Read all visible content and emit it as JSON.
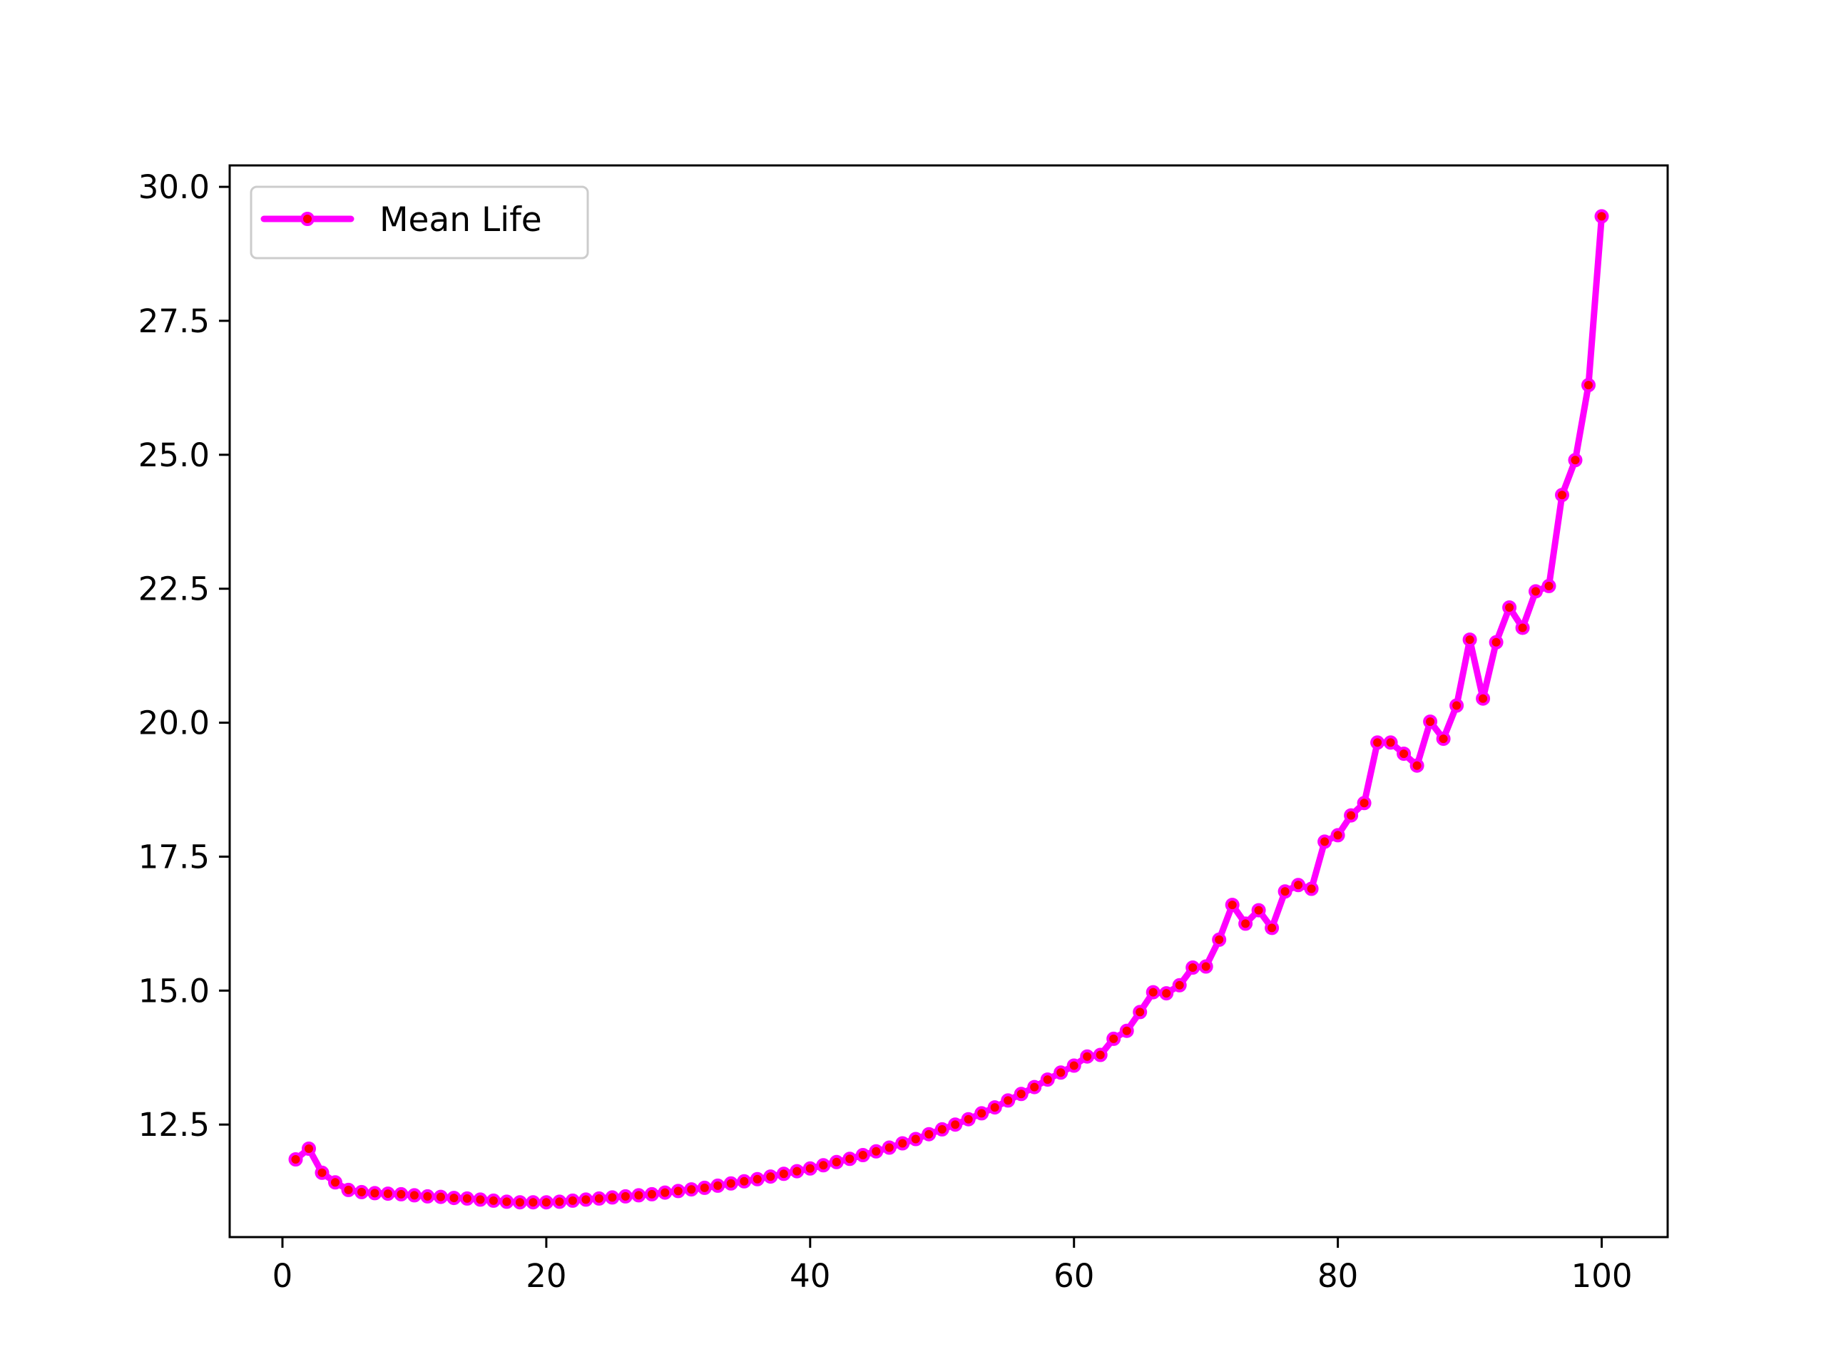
{
  "chart_data": {
    "type": "line",
    "title": "",
    "xlabel": "",
    "ylabel": "",
    "xlim": [
      -4,
      105
    ],
    "ylim": [
      10.4,
      30.4
    ],
    "xticks": [
      0,
      20,
      40,
      60,
      80,
      100
    ],
    "xtick_labels": [
      "0",
      "20",
      "40",
      "60",
      "80",
      "100"
    ],
    "yticks": [
      12.5,
      15.0,
      17.5,
      20.0,
      22.5,
      25.0,
      27.5,
      30.0
    ],
    "ytick_labels": [
      "12.5",
      "15.0",
      "17.5",
      "20.0",
      "22.5",
      "25.0",
      "27.5",
      "30.0"
    ],
    "grid": false,
    "legend": {
      "position": "top-left",
      "entries": [
        "Mean Life"
      ]
    },
    "line_color": "#ff00ff",
    "marker_color": "#ff0000",
    "series": [
      {
        "name": "Mean Life",
        "x": [
          1,
          2,
          3,
          4,
          5,
          6,
          7,
          8,
          9,
          10,
          11,
          12,
          13,
          14,
          15,
          16,
          17,
          18,
          19,
          20,
          21,
          22,
          23,
          24,
          25,
          26,
          27,
          28,
          29,
          30,
          31,
          32,
          33,
          34,
          35,
          36,
          37,
          38,
          39,
          40,
          41,
          42,
          43,
          44,
          45,
          46,
          47,
          48,
          49,
          50,
          51,
          52,
          53,
          54,
          55,
          56,
          57,
          58,
          59,
          60,
          61,
          62,
          63,
          64,
          65,
          66,
          67,
          68,
          69,
          70,
          71,
          72,
          73,
          74,
          75,
          76,
          77,
          78,
          79,
          80,
          81,
          82,
          83,
          84,
          85,
          86,
          87,
          88,
          89,
          90,
          91,
          92,
          93,
          94,
          95,
          96,
          97,
          98,
          99,
          100
        ],
        "y": [
          11.85,
          12.05,
          11.6,
          11.42,
          11.28,
          11.24,
          11.22,
          11.21,
          11.2,
          11.18,
          11.16,
          11.15,
          11.13,
          11.12,
          11.1,
          11.08,
          11.06,
          11.05,
          11.05,
          11.05,
          11.06,
          11.08,
          11.1,
          11.12,
          11.14,
          11.16,
          11.18,
          11.2,
          11.23,
          11.26,
          11.29,
          11.32,
          11.36,
          11.4,
          11.44,
          11.48,
          11.53,
          11.58,
          11.63,
          11.68,
          11.74,
          11.8,
          11.86,
          11.93,
          12.0,
          12.07,
          12.15,
          12.23,
          12.32,
          12.41,
          12.5,
          12.6,
          12.71,
          12.82,
          12.95,
          13.07,
          13.2,
          13.34,
          13.47,
          13.6,
          13.77,
          13.8,
          14.1,
          14.25,
          14.6,
          14.97,
          14.95,
          15.1,
          15.43,
          15.45,
          15.95,
          16.6,
          16.25,
          16.5,
          16.17,
          16.85,
          16.97,
          16.9,
          17.78,
          17.9,
          18.27,
          18.5,
          19.63,
          19.63,
          19.42,
          19.2,
          20.02,
          19.7,
          20.32,
          21.55,
          20.45,
          21.5,
          22.15,
          21.77,
          22.45,
          22.55,
          24.25,
          24.9,
          26.3,
          29.45
        ]
      }
    ]
  }
}
